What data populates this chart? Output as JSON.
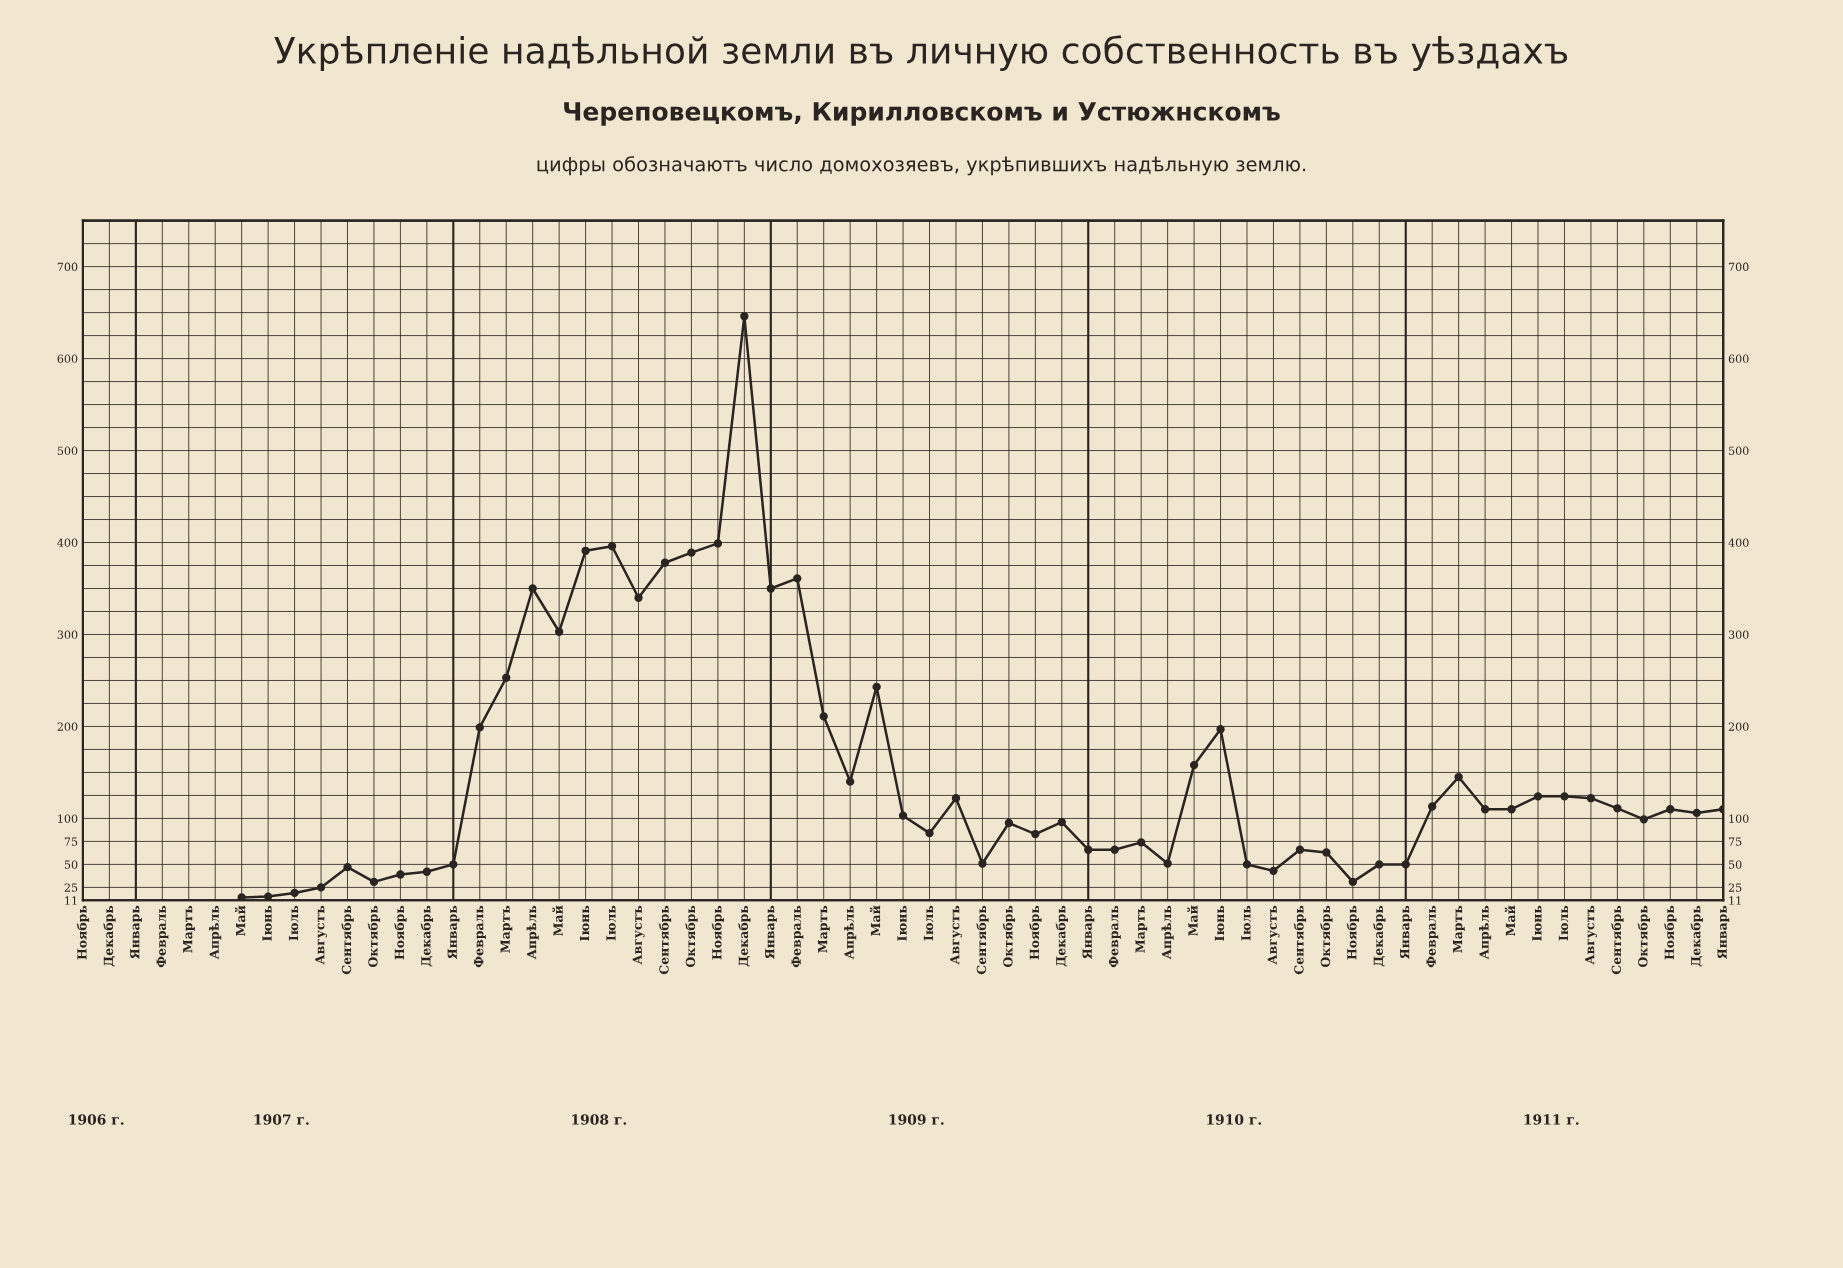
{
  "chart_data": {
    "type": "line",
    "title": "Укрѣпленіе надѣльной земли въ личную собственность въ уѣздахъ",
    "subtitle": "Череповецкомъ, Кирилловскомъ и Устюжнскомъ",
    "annotations": [
      "цифры обозначаютъ число домохозяевъ, укрѣпившихъ надѣльную землю.",
      "1906 г.",
      "1907 г.",
      "1908 г.",
      "1909 г.",
      "1910 г.",
      "1911 г."
    ],
    "categories": [
      "Ноябрь",
      "Декабрь",
      "Январь",
      "Февраль",
      "Мартъ",
      "Апрѣль",
      "Май",
      "Іюнь",
      "Іюль",
      "Августъ",
      "Сентябрь",
      "Октябрь",
      "Ноябрь",
      "Декабрь",
      "Январь",
      "Февраль",
      "Мартъ",
      "Апрѣль",
      "Май",
      "Іюнь",
      "Іюль",
      "Августъ",
      "Сентябрь",
      "Октябрь",
      "Ноябрь",
      "Декабрь",
      "Январь",
      "Февраль",
      "Мартъ",
      "Апрѣль",
      "Май",
      "Іюнь",
      "Іюль",
      "Августъ",
      "Сентябрь",
      "Октябрь",
      "Ноябрь",
      "Декабрь",
      "Январь",
      "Февраль",
      "Мартъ",
      "Апрѣль",
      "Май",
      "Іюнь",
      "Іюль",
      "Августъ",
      "Сентябрь",
      "Октябрь",
      "Ноябрь",
      "Декабрь",
      "Январь",
      "Февраль",
      "Мартъ",
      "Апрѣль",
      "Май",
      "Іюнь",
      "Іюль",
      "Августъ",
      "Сентябрь",
      "Октябрь",
      "Ноябрь",
      "Декабрь",
      "Январь"
    ],
    "series": [
      {
        "color": "#2a2520",
        "values": [
          null,
          null,
          null,
          null,
          null,
          null,
          14,
          15,
          19,
          25,
          47,
          31,
          39,
          42,
          50,
          199,
          253,
          350,
          303,
          391,
          396,
          340,
          378,
          389,
          399,
          646,
          350,
          361,
          211,
          140,
          243,
          103,
          84,
          122,
          51,
          95,
          83,
          96,
          66,
          66,
          74,
          51,
          158,
          197,
          50,
          43,
          66,
          63,
          31,
          50,
          50,
          113,
          145,
          110,
          110,
          124,
          124,
          122,
          111,
          99,
          110,
          106,
          110
        ]
      }
    ],
    "ylim": [
      11,
      750
    ],
    "yticks": [
      11,
      25,
      50,
      75,
      100,
      {
        "value": 125,
        "label": null
      },
      {
        "value": 150,
        "label": null
      },
      {
        "value": 175,
        "label": null
      },
      200,
      {
        "value": 225,
        "label": null
      },
      {
        "value": 250,
        "label": null
      },
      {
        "value": 275,
        "label": null
      },
      300,
      {
        "value": 325,
        "label": null
      },
      {
        "value": 350,
        "label": null
      },
      {
        "value": 375,
        "label": null
      },
      400,
      {
        "value": 425,
        "label": null
      },
      {
        "value": 450,
        "label": null
      },
      {
        "value": 475,
        "label": null
      },
      500,
      {
        "value": 525,
        "label": null
      },
      {
        "value": 550,
        "label": null
      },
      {
        "value": 575,
        "label": null
      },
      600,
      {
        "value": 625,
        "label": null
      },
      {
        "value": 650,
        "label": null
      },
      {
        "value": 675,
        "label": null
      },
      700,
      {
        "value": 725,
        "label": null
      }
    ],
    "y2lim": [
      11,
      750
    ],
    "y2ticks": [
      11,
      25,
      50,
      75,
      100,
      200,
      300,
      400,
      500,
      600,
      700
    ],
    "grid": true,
    "marker": "circle",
    "line_style": "solid",
    "legend": false
  }
}
